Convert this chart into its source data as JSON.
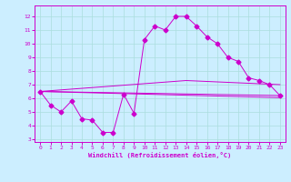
{
  "xlabel": "Windchill (Refroidissement éolien,°C)",
  "xlim": [
    -0.5,
    23.5
  ],
  "ylim": [
    2.8,
    12.8
  ],
  "yticks": [
    3,
    4,
    5,
    6,
    7,
    8,
    9,
    10,
    11,
    12
  ],
  "xticks": [
    0,
    1,
    2,
    3,
    4,
    5,
    6,
    7,
    8,
    9,
    10,
    11,
    12,
    13,
    14,
    15,
    16,
    17,
    18,
    19,
    20,
    21,
    22,
    23
  ],
  "bg_color": "#cceeff",
  "line_color": "#cc00cc",
  "grid_color": "#aadddd",
  "series_main": {
    "x": [
      0,
      1,
      2,
      3,
      4,
      5,
      6,
      7,
      8,
      9,
      10,
      11,
      12,
      13,
      14,
      15,
      16,
      17,
      18,
      19,
      20,
      21,
      22,
      23
    ],
    "y": [
      6.5,
      5.5,
      5.0,
      5.8,
      4.5,
      4.4,
      3.5,
      3.5,
      6.3,
      4.9,
      10.3,
      11.3,
      11.0,
      12.0,
      12.0,
      11.3,
      10.5,
      10.0,
      9.0,
      8.7,
      7.5,
      7.3,
      7.0,
      6.2
    ]
  },
  "series_flat": [
    {
      "x": [
        0,
        23
      ],
      "y": [
        6.5,
        6.2
      ]
    },
    {
      "x": [
        0,
        23
      ],
      "y": [
        6.5,
        6.05
      ]
    },
    {
      "x": [
        0,
        14,
        23
      ],
      "y": [
        6.5,
        7.3,
        7.0
      ]
    }
  ],
  "figsize": [
    3.2,
    2.0
  ],
  "dpi": 100
}
